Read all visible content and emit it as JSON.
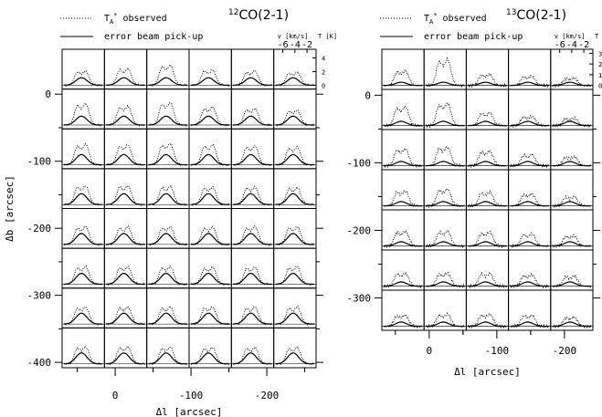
{
  "chart_data": [
    {
      "type": "line",
      "title_sup": "12",
      "title": "CO(2-1)",
      "legend": [
        {
          "label": "T",
          "sub": "A",
          "sup": "*",
          "suffix": " observed",
          "style": "dotted"
        },
        {
          "label": "error beam pick-up",
          "style": "solid"
        }
      ],
      "grid_rows": 8,
      "grid_cols": 6,
      "xlabel": "Δl [arcsec]",
      "ylabel": "Δb [arcsec]",
      "x_ticks": [
        "0",
        "-100",
        "-200"
      ],
      "x_tick_values": [
        0,
        -100,
        -200
      ],
      "y_ticks": [
        "0",
        "-100",
        "-200",
        "-300",
        "-400"
      ],
      "y_tick_values": [
        0,
        -100,
        -200,
        -300,
        -400
      ],
      "xlim": [
        70,
        -265
      ],
      "ylim": [
        -408,
        67
      ],
      "inset": {
        "xlabel": "v [km/s]",
        "ylabel": "T [K]",
        "x_ticks": [
          "-6",
          "-4",
          "-2"
        ],
        "x_tick_values": [
          -6,
          -4,
          -2
        ],
        "y_ticks": [
          "0",
          "2",
          "4"
        ],
        "y_tick_values": [
          0,
          2,
          4
        ],
        "vlim": [
          -7.2,
          -0.8
        ],
        "tlim": [
          -0.3,
          5.0
        ]
      },
      "observed_peak_K": [
        [
          2.4,
          2.8,
          3.4,
          2.6,
          2.4,
          2.2
        ],
        [
          3.6,
          3.2,
          3.8,
          3.0,
          2.8,
          2.5
        ],
        [
          3.5,
          3.4,
          3.6,
          3.4,
          3.2,
          3.0
        ],
        [
          3.2,
          3.2,
          3.1,
          3.0,
          3.0,
          2.9
        ],
        [
          3.0,
          3.0,
          3.0,
          3.0,
          3.0,
          3.0
        ],
        [
          3.0,
          3.0,
          3.0,
          2.9,
          2.9,
          3.0
        ],
        [
          2.9,
          2.9,
          2.9,
          2.9,
          2.9,
          2.9
        ],
        [
          2.9,
          2.9,
          2.8,
          2.8,
          2.8,
          2.8
        ]
      ],
      "error_beam_peak_K": [
        [
          1.1,
          1.1,
          1.1,
          1.1,
          1.1,
          1.1
        ],
        [
          1.3,
          1.3,
          1.3,
          1.3,
          1.3,
          1.3
        ],
        [
          1.5,
          1.5,
          1.5,
          1.5,
          1.5,
          1.5
        ],
        [
          1.6,
          1.6,
          1.6,
          1.6,
          1.6,
          1.6
        ],
        [
          1.6,
          1.6,
          1.6,
          1.6,
          1.6,
          1.6
        ],
        [
          1.6,
          1.6,
          1.6,
          1.6,
          1.6,
          1.6
        ],
        [
          1.6,
          1.6,
          1.6,
          1.6,
          1.6,
          1.6
        ],
        [
          1.6,
          1.6,
          1.6,
          1.6,
          1.6,
          1.6
        ]
      ]
    },
    {
      "type": "line",
      "title_sup": "13",
      "title": "CO(2-1)",
      "legend": [
        {
          "label": "T",
          "sub": "A",
          "sup": "*",
          "suffix": " observed",
          "style": "dotted"
        },
        {
          "label": "error beam pick-up",
          "style": "solid"
        }
      ],
      "grid_rows": 7,
      "grid_cols": 5,
      "xlabel": "Δl [arcsec]",
      "ylabel": "",
      "x_ticks": [
        "0",
        "-100",
        "-200"
      ],
      "x_tick_values": [
        0,
        -100,
        -200
      ],
      "y_ticks": [
        "0",
        "-100",
        "-200",
        "-300"
      ],
      "y_tick_values": [
        0,
        -100,
        -200,
        -300
      ],
      "xlim": [
        70,
        -242
      ],
      "ylim": [
        -348,
        68
      ],
      "inset": {
        "xlabel": "v [km/s]",
        "ylabel": "T [K]",
        "x_ticks": [
          "-6",
          "-4",
          "-2"
        ],
        "x_tick_values": [
          -6,
          -4,
          -2
        ],
        "y_ticks": [
          "0",
          "1",
          "2",
          "3"
        ],
        "y_tick_values": [
          0,
          1,
          2,
          3
        ],
        "vlim": [
          -7.2,
          -0.8
        ],
        "tlim": [
          -0.2,
          3.2
        ]
      },
      "observed_peak_K": [
        [
          1.6,
          2.8,
          1.2,
          1.0,
          0.8
        ],
        [
          2.0,
          2.4,
          1.4,
          1.0,
          0.8
        ],
        [
          1.8,
          2.0,
          1.6,
          1.2,
          1.0
        ],
        [
          1.6,
          1.8,
          1.5,
          1.3,
          1.0
        ],
        [
          1.6,
          1.6,
          1.5,
          1.3,
          1.1
        ],
        [
          1.4,
          1.4,
          1.4,
          1.2,
          1.1
        ],
        [
          1.2,
          1.3,
          1.3,
          1.2,
          1.0
        ]
      ],
      "error_beam_peak_K": [
        [
          0.3,
          0.3,
          0.3,
          0.3,
          0.3
        ],
        [
          0.4,
          0.4,
          0.4,
          0.4,
          0.4
        ],
        [
          0.4,
          0.4,
          0.4,
          0.4,
          0.4
        ],
        [
          0.4,
          0.4,
          0.4,
          0.4,
          0.4
        ],
        [
          0.4,
          0.4,
          0.4,
          0.4,
          0.4
        ],
        [
          0.4,
          0.4,
          0.4,
          0.4,
          0.4
        ],
        [
          0.4,
          0.4,
          0.4,
          0.4,
          0.4
        ]
      ]
    }
  ]
}
